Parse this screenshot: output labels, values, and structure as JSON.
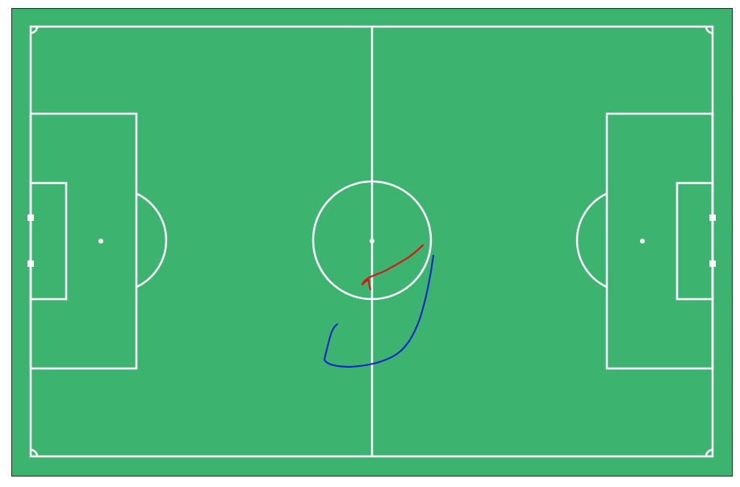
{
  "pitch": {
    "grass_color": "#3db370",
    "line_color": "#ffffff",
    "border_color": "#1a3a24"
  },
  "drawings": [
    {
      "name": "red-stroke",
      "color": "#dd1111"
    },
    {
      "name": "blue-stroke",
      "color": "#1122cc"
    }
  ]
}
